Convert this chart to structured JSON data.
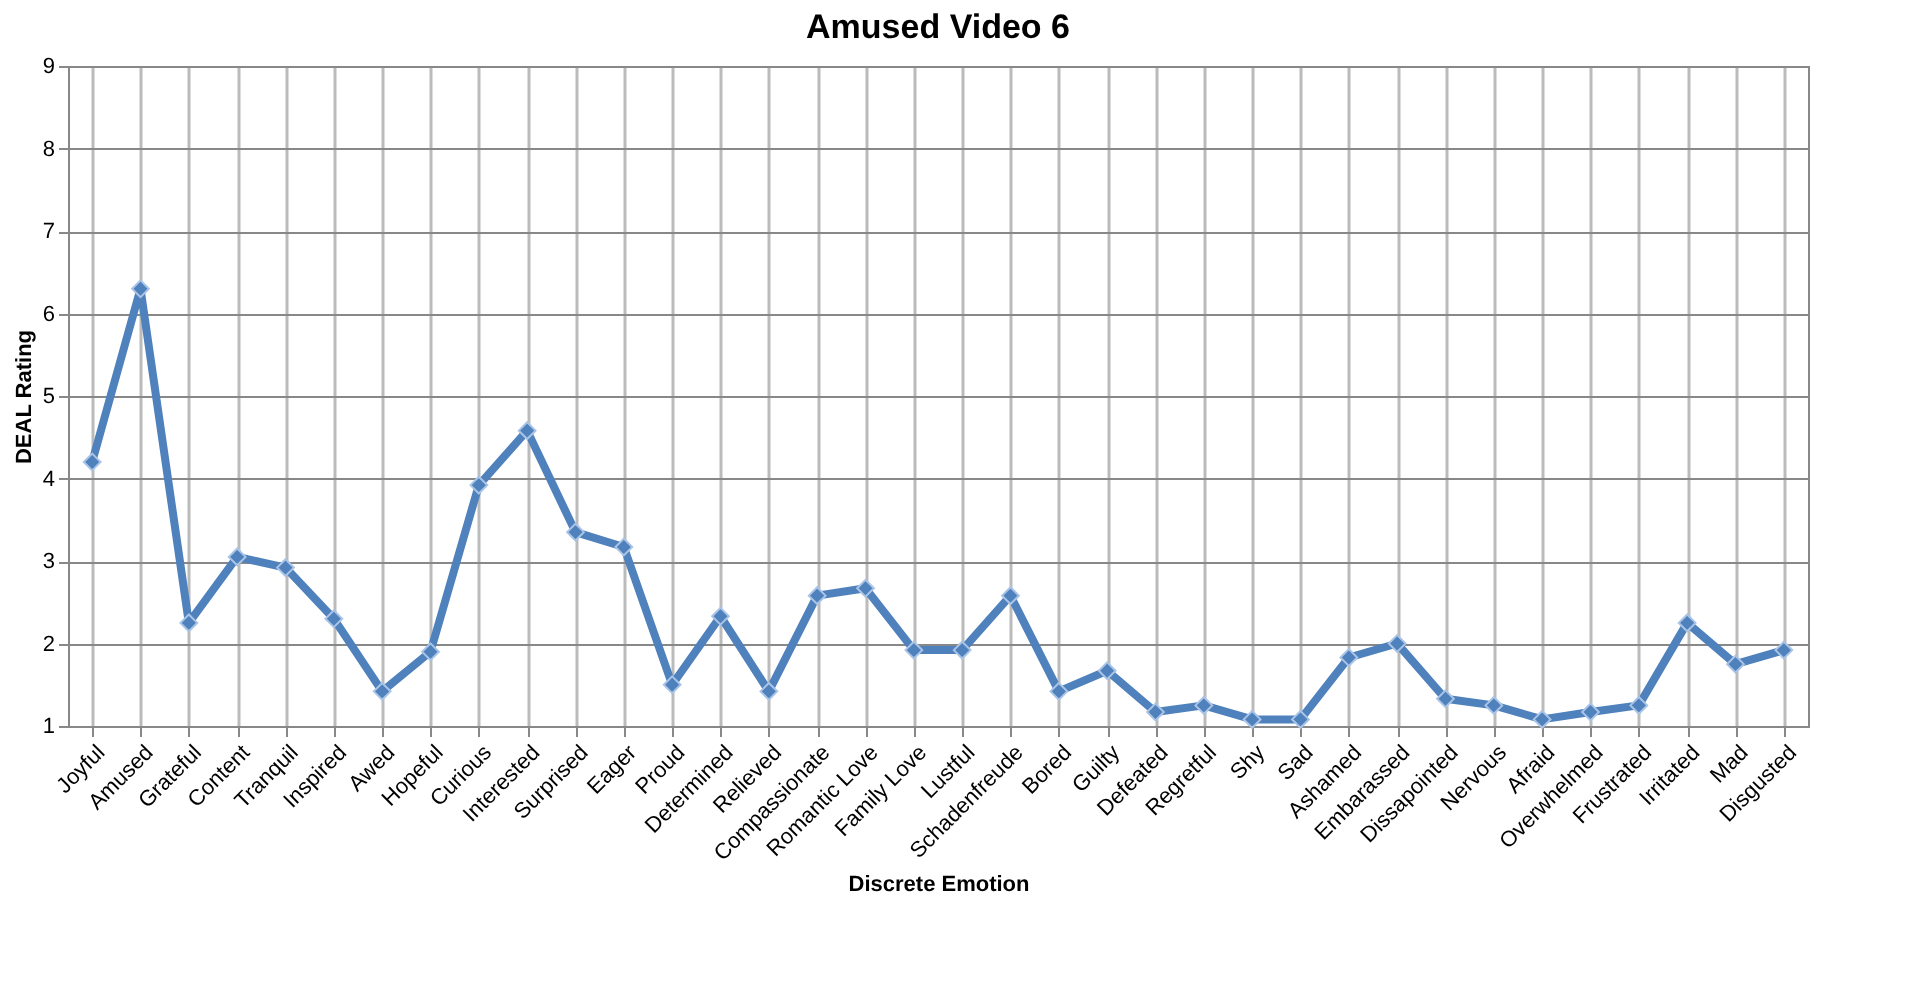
{
  "chart_data": {
    "type": "line",
    "title": "Amused Video 6",
    "xlabel": "Discrete Emotion",
    "ylabel": "DEAL Rating",
    "categories": [
      "Joyful",
      "Amused",
      "Grateful",
      "Content",
      "Tranquil",
      "Inspired",
      "Awed",
      "Hopeful",
      "Curious",
      "Interested",
      "Surprised",
      "Eager",
      "Proud",
      "Determined",
      "Relieved",
      "Compassionate",
      "Romantic Love",
      "Family Love",
      "Lustful",
      "Schadenfreude",
      "Bored",
      "Guilty",
      "Defeated",
      "Regretful",
      "Shy",
      "Sad",
      "Ashamed",
      "Embarassed",
      "Dissapointed",
      "Nervous",
      "Afraid",
      "Overwhelmed",
      "Frustrated",
      "Irritated",
      "Mad",
      "Disgusted"
    ],
    "series": [
      {
        "color": "#4f81bd",
        "values": [
          4.2,
          6.3,
          2.25,
          3.05,
          2.92,
          2.3,
          1.42,
          1.9,
          3.92,
          4.58,
          3.35,
          3.17,
          1.5,
          2.33,
          1.42,
          2.58,
          2.67,
          1.92,
          1.92,
          2.58,
          1.42,
          1.67,
          1.17,
          1.25,
          1.08,
          1.08,
          1.83,
          2.0,
          1.33,
          1.25,
          1.08,
          1.17,
          1.25,
          2.25,
          1.75,
          1.92
        ]
      }
    ],
    "ylim": [
      1,
      9
    ],
    "yticks": [
      1,
      2,
      3,
      4,
      5,
      6,
      7,
      8,
      9
    ],
    "grid": true,
    "marker": "diamond",
    "line_style": "solid"
  }
}
